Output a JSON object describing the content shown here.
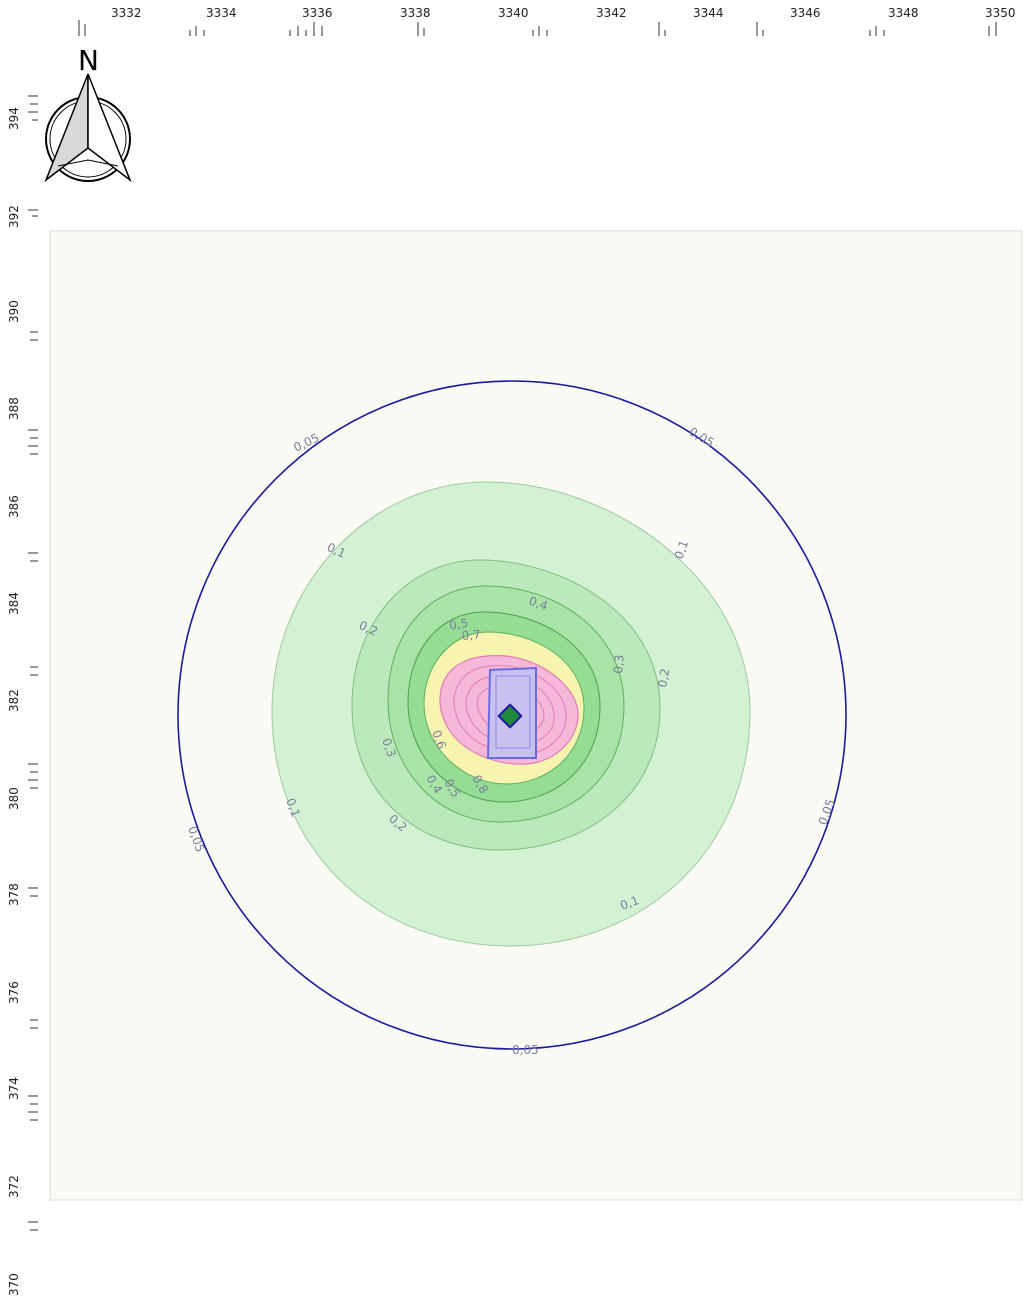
{
  "map": {
    "north_label": "N",
    "x_ticks": [
      "3332",
      "3334",
      "3336",
      "3338",
      "3340",
      "3342",
      "3344",
      "3346",
      "3348",
      "3350"
    ],
    "y_ticks": [
      "394",
      "392",
      "390",
      "388",
      "386",
      "384",
      "382",
      "380",
      "378",
      "376",
      "374",
      "372",
      "370"
    ],
    "contour_labels": {
      "c005": "0,05",
      "c01": "0,1",
      "c02": "0,2",
      "c03": "0,3",
      "c04": "0,4",
      "c05": "0,5",
      "c06": "0,6",
      "c07": "0,7",
      "c08": "0,8"
    },
    "colors": {
      "background": "#fbfbf6",
      "outer_contour": "#1a1aa0",
      "zone_green_light": "#d3f1d3",
      "zone_green": "#a8e4a8",
      "zone_yellow": "#f7f4b0",
      "zone_pink": "#f6b8d8",
      "zone_purple": "#c8c0ee",
      "source_marker": "#1f8a3a"
    }
  }
}
